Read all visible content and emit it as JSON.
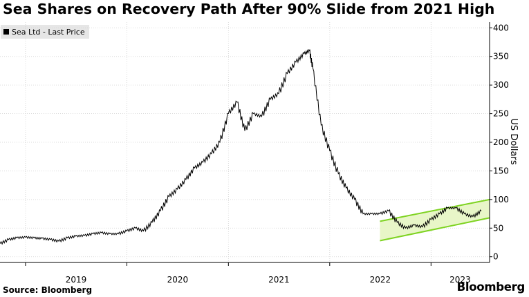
{
  "header": {
    "title": "Sea Shares on Recovery Path After 90% Slide from 2021 High"
  },
  "legend": {
    "label": "Sea Ltd - Last Price"
  },
  "footer": {
    "source": "Source:  Bloomberg",
    "brand": "Bloomberg"
  },
  "colors": {
    "line": "#000000",
    "channel": "#7ed321",
    "channel_fill": "#e8f6c8",
    "grid": "#d0d0d0"
  },
  "chart_data": {
    "type": "line",
    "title": "Sea Shares on Recovery Path After 90% Slide from 2021 High",
    "ylabel": "US Dollars",
    "xlabel": "",
    "ylim": [
      -10,
      410
    ],
    "xlim": [
      "2018-10-01",
      "2023-07-31"
    ],
    "grid": true,
    "legend_position": "top-left",
    "x_tick_labels": [
      "2019",
      "2020",
      "2021",
      "2022",
      "2023"
    ],
    "y_ticks": [
      0,
      50,
      100,
      150,
      200,
      250,
      300,
      350,
      400
    ],
    "series": [
      {
        "name": "Sea Ltd - Last Price",
        "points": [
          [
            "2018-10-01",
            23
          ],
          [
            "2018-11-01",
            30
          ],
          [
            "2018-12-01",
            33
          ],
          [
            "2019-01-01",
            34
          ],
          [
            "2019-02-01",
            33
          ],
          [
            "2019-03-01",
            32
          ],
          [
            "2019-04-01",
            30
          ],
          [
            "2019-05-01",
            27
          ],
          [
            "2019-06-01",
            33
          ],
          [
            "2019-07-01",
            36
          ],
          [
            "2019-08-01",
            37
          ],
          [
            "2019-09-01",
            40
          ],
          [
            "2019-10-01",
            42
          ],
          [
            "2019-11-01",
            40
          ],
          [
            "2019-12-01",
            40
          ],
          [
            "2020-01-01",
            45
          ],
          [
            "2020-02-01",
            50
          ],
          [
            "2020-03-01",
            45
          ],
          [
            "2020-04-01",
            60
          ],
          [
            "2020-05-01",
            80
          ],
          [
            "2020-06-01",
            105
          ],
          [
            "2020-07-01",
            118
          ],
          [
            "2020-08-01",
            135
          ],
          [
            "2020-09-01",
            155
          ],
          [
            "2020-10-01",
            165
          ],
          [
            "2020-11-01",
            180
          ],
          [
            "2020-12-01",
            200
          ],
          [
            "2021-01-01",
            250
          ],
          [
            "2021-02-01",
            270
          ],
          [
            "2021-03-01",
            220
          ],
          [
            "2021-04-01",
            250
          ],
          [
            "2021-05-01",
            245
          ],
          [
            "2021-06-01",
            275
          ],
          [
            "2021-07-01",
            285
          ],
          [
            "2021-08-01",
            320
          ],
          [
            "2021-09-01",
            340
          ],
          [
            "2021-10-01",
            355
          ],
          [
            "2021-10-20",
            360
          ],
          [
            "2021-11-01",
            330
          ],
          [
            "2021-12-01",
            230
          ],
          [
            "2022-01-01",
            185
          ],
          [
            "2022-02-01",
            145
          ],
          [
            "2022-03-01",
            120
          ],
          [
            "2022-04-01",
            100
          ],
          [
            "2022-05-01",
            75
          ],
          [
            "2022-06-01",
            75
          ],
          [
            "2022-07-01",
            75
          ],
          [
            "2022-08-01",
            80
          ],
          [
            "2022-09-01",
            60
          ],
          [
            "2022-10-01",
            50
          ],
          [
            "2022-11-01",
            55
          ],
          [
            "2022-12-01",
            52
          ],
          [
            "2023-01-01",
            65
          ],
          [
            "2023-02-01",
            75
          ],
          [
            "2023-03-01",
            85
          ],
          [
            "2023-04-01",
            85
          ],
          [
            "2023-05-01",
            75
          ],
          [
            "2023-06-01",
            70
          ],
          [
            "2023-07-01",
            80
          ]
        ]
      }
    ],
    "annotations": [
      {
        "type": "channel",
        "upper": [
          [
            "2022-07-01",
            62
          ],
          [
            "2023-07-31",
            100
          ]
        ],
        "lower": [
          [
            "2022-07-01",
            28
          ],
          [
            "2023-07-31",
            68
          ]
        ]
      }
    ]
  }
}
